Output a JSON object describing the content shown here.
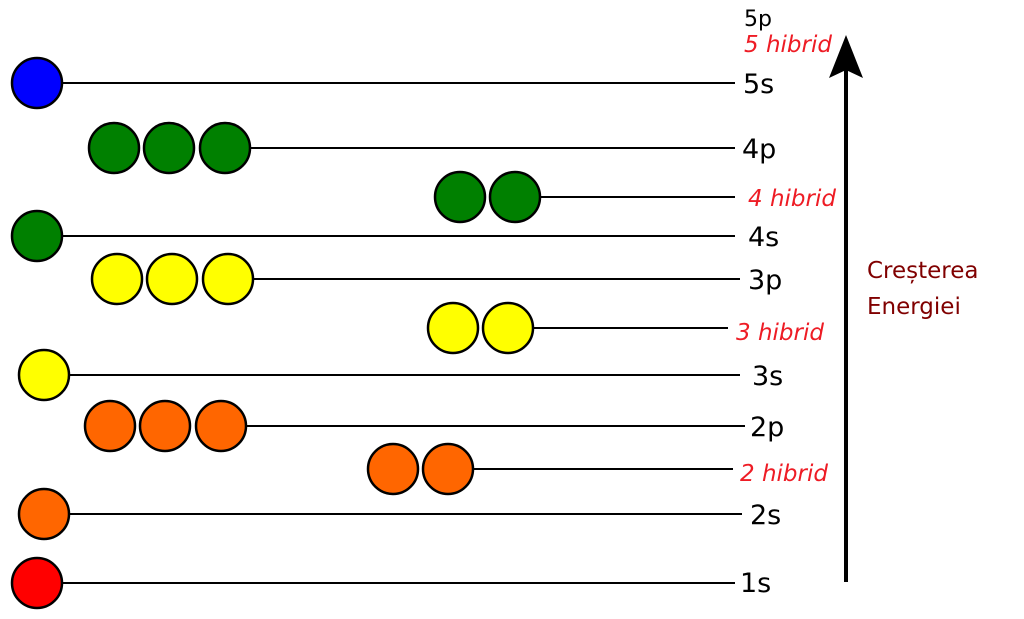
{
  "title_top": "5p",
  "energy_label": {
    "line1": "Creșterea",
    "line2": "Energiei",
    "color": "#800000"
  },
  "hybrid_color": "#ee1c25",
  "levels": [
    {
      "label": "5s",
      "type": "orbital",
      "circles": 1,
      "color": "#0000ff"
    },
    {
      "label": "4p",
      "type": "orbital",
      "circles": 3,
      "color": "#008000"
    },
    {
      "label": "4 hibrid",
      "type": "hybrid",
      "circles": 2,
      "color": "#008000"
    },
    {
      "label": "4s",
      "type": "orbital",
      "circles": 1,
      "color": "#008000"
    },
    {
      "label": "3p",
      "type": "orbital",
      "circles": 3,
      "color": "#ffff00"
    },
    {
      "label": "3 hibrid",
      "type": "hybrid",
      "circles": 2,
      "color": "#ffff00"
    },
    {
      "label": "3s",
      "type": "orbital",
      "circles": 1,
      "color": "#ffff00"
    },
    {
      "label": "2p",
      "type": "orbital",
      "circles": 3,
      "color": "#ff6600"
    },
    {
      "label": "2 hibrid",
      "type": "hybrid",
      "circles": 2,
      "color": "#ff6600"
    },
    {
      "label": "2s",
      "type": "orbital",
      "circles": 1,
      "color": "#ff6600"
    },
    {
      "label": "1s",
      "type": "orbital",
      "circles": 1,
      "color": "#ff0000"
    }
  ],
  "top_hybrid": {
    "label": "5 hibrid"
  }
}
